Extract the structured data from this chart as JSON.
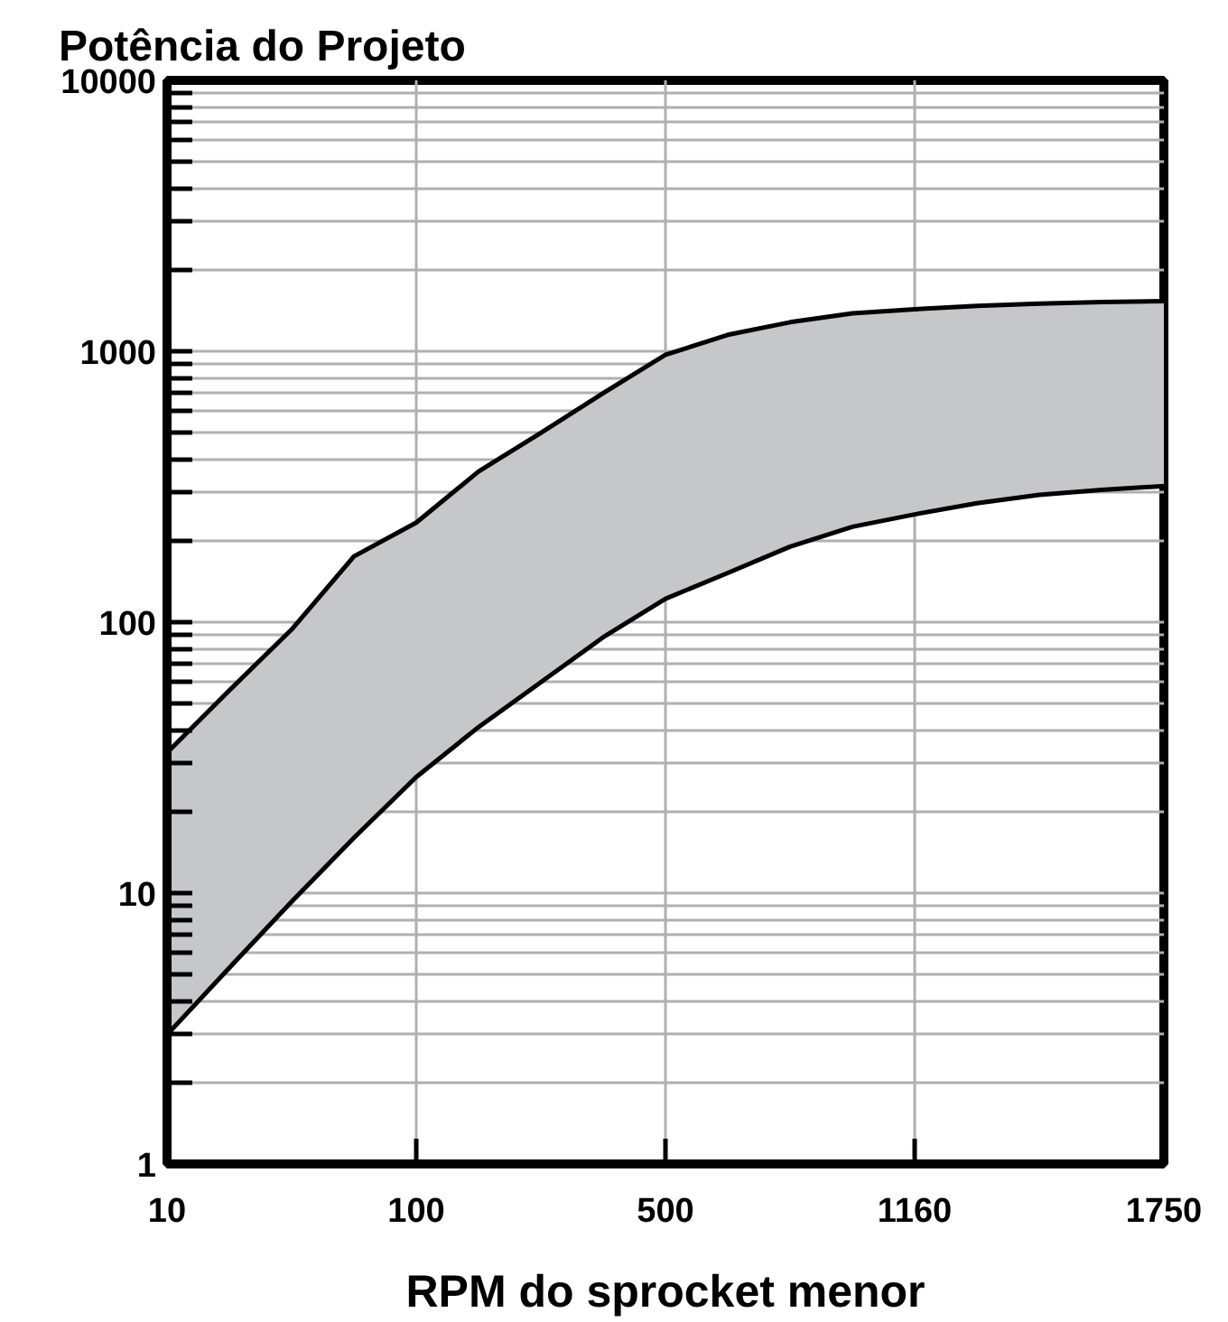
{
  "chart_data": {
    "type": "line",
    "title": "Potência do Projeto",
    "xlabel": "RPM do sprocket menor",
    "categories": [
      "10",
      null,
      null,
      null,
      "100",
      null,
      null,
      null,
      "500",
      null,
      null,
      null,
      "1160",
      null,
      null,
      null,
      "1750"
    ],
    "series": [
      {
        "type": "area",
        "color": "#c6c7c9",
        "values": [
          33,
          56,
          94,
          175,
          233,
          360,
          500,
          700,
          970,
          1150,
          1280,
          1380,
          1430,
          1470,
          1500,
          1520,
          1530
        ]
      },
      {
        "color": "#000000",
        "values": [
          3.0,
          5.3,
          9.3,
          16,
          26.8,
          41,
          60,
          88,
          122,
          152,
          190,
          225,
          250,
          275,
          295,
          308,
          318
        ]
      }
    ],
    "log": "y",
    "ylim": [
      1,
      10000
    ],
    "yticks": [
      1,
      {
        "value": 2,
        "label": null
      },
      {
        "value": 3,
        "label": null
      },
      {
        "value": 4,
        "label": null
      },
      {
        "value": 5,
        "label": null
      },
      {
        "value": 6,
        "label": null
      },
      {
        "value": 7,
        "label": null
      },
      {
        "value": 8,
        "label": null
      },
      {
        "value": 9,
        "label": null
      },
      10,
      {
        "value": 20,
        "label": null
      },
      {
        "value": 30,
        "label": null
      },
      {
        "value": 40,
        "label": null
      },
      {
        "value": 50,
        "label": null
      },
      {
        "value": 60,
        "label": null
      },
      {
        "value": 70,
        "label": null
      },
      {
        "value": 80,
        "label": null
      },
      {
        "value": 90,
        "label": null
      },
      100,
      {
        "value": 200,
        "label": null
      },
      {
        "value": 300,
        "label": null
      },
      {
        "value": 400,
        "label": null
      },
      {
        "value": 500,
        "label": null
      },
      {
        "value": 600,
        "label": null
      },
      {
        "value": 700,
        "label": null
      },
      {
        "value": 800,
        "label": null
      },
      {
        "value": 900,
        "label": null
      },
      1000,
      {
        "value": 2000,
        "label": null
      },
      {
        "value": 3000,
        "label": null
      },
      {
        "value": 4000,
        "label": null
      },
      {
        "value": 5000,
        "label": null
      },
      {
        "value": 6000,
        "label": null
      },
      {
        "value": 7000,
        "label": null
      },
      {
        "value": 8000,
        "label": null
      },
      {
        "value": 9000,
        "label": null
      },
      10000
    ],
    "grid": true
  }
}
